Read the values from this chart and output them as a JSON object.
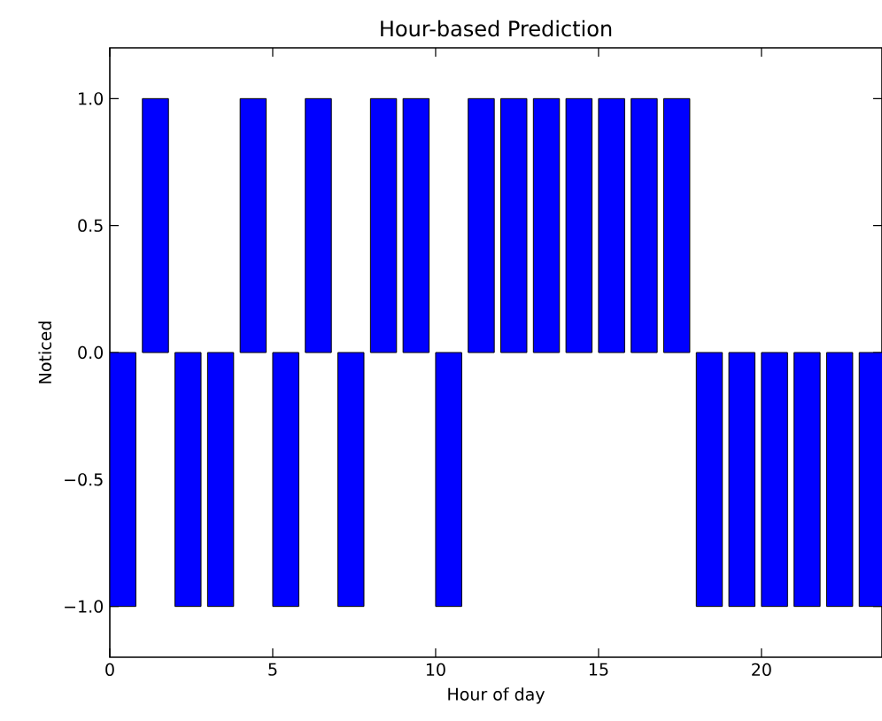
{
  "chart_data": {
    "type": "bar",
    "title": "Hour-based Prediction",
    "xlabel": "Hour of day",
    "ylabel": "Noticed",
    "x": [
      0.4,
      1.4,
      2.4,
      3.4,
      4.4,
      5.4,
      6.4,
      7.4,
      8.4,
      9.4,
      10.4,
      11.4,
      12.4,
      13.4,
      14.4,
      15.4,
      16.4,
      17.4,
      18.4,
      19.4,
      20.4,
      21.4,
      22.4,
      23.4
    ],
    "values": [
      -1,
      1,
      -1,
      -1,
      1,
      -1,
      1,
      -1,
      1,
      1,
      -1,
      1,
      1,
      1,
      1,
      1,
      1,
      1,
      -1,
      -1,
      -1,
      -1,
      -1,
      -1
    ],
    "color": "#0000ff",
    "xlim": [
      0,
      23.7
    ],
    "xticks": [
      0,
      5,
      10,
      15,
      20
    ],
    "ylim": [
      -1.2,
      1.2
    ],
    "yticks": [
      {
        "value": -1,
        "label": "−1.0"
      },
      {
        "value": -0.5,
        "label": "−0.5"
      },
      {
        "value": 0,
        "label": "0.0"
      },
      {
        "value": 0.5,
        "label": "0.5"
      },
      {
        "value": 1,
        "label": "1.0"
      }
    ],
    "grid": false
  }
}
